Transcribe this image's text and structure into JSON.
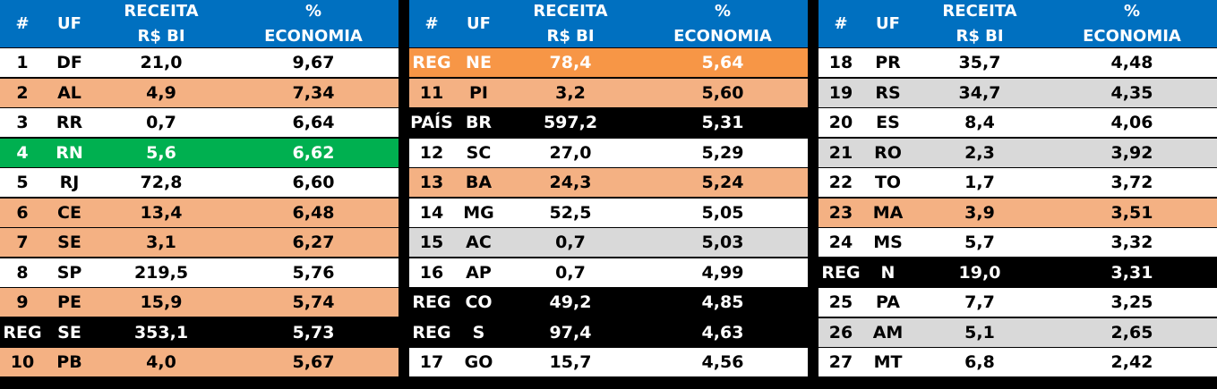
{
  "headers": {
    "rank": "#",
    "uf": "UF",
    "receita_line1": "RECEITA",
    "receita_line2": "R$ BI",
    "economia_line1": "%",
    "economia_line2": "ECONOMIA"
  },
  "colors": {
    "header": "#0070c0",
    "white": "#ffffff",
    "salmon": "#f4b183",
    "gray": "#d9d9d9",
    "orange": "#f79646",
    "green": "#00b050",
    "black": "#000000"
  },
  "tables": [
    {
      "rows": [
        {
          "rank": "1",
          "uf": "DF",
          "receita": "21,0",
          "economia": "9,67",
          "style": "white"
        },
        {
          "rank": "2",
          "uf": "AL",
          "receita": "4,9",
          "economia": "7,34",
          "style": "salmon"
        },
        {
          "rank": "3",
          "uf": "RR",
          "receita": "0,7",
          "economia": "6,64",
          "style": "white"
        },
        {
          "rank": "4",
          "uf": "RN",
          "receita": "5,6",
          "economia": "6,62",
          "style": "green"
        },
        {
          "rank": "5",
          "uf": "RJ",
          "receita": "72,8",
          "economia": "6,60",
          "style": "white"
        },
        {
          "rank": "6",
          "uf": "CE",
          "receita": "13,4",
          "economia": "6,48",
          "style": "salmon"
        },
        {
          "rank": "7",
          "uf": "SE",
          "receita": "3,1",
          "economia": "6,27",
          "style": "salmon"
        },
        {
          "rank": "8",
          "uf": "SP",
          "receita": "219,5",
          "economia": "5,76",
          "style": "white"
        },
        {
          "rank": "9",
          "uf": "PE",
          "receita": "15,9",
          "economia": "5,74",
          "style": "salmon"
        },
        {
          "rank": "REG",
          "uf": "SE",
          "receita": "353,1",
          "economia": "5,73",
          "style": "black"
        },
        {
          "rank": "10",
          "uf": "PB",
          "receita": "4,0",
          "economia": "5,67",
          "style": "salmon"
        }
      ]
    },
    {
      "rows": [
        {
          "rank": "REG",
          "uf": "NE",
          "receita": "78,4",
          "economia": "5,64",
          "style": "orange"
        },
        {
          "rank": "11",
          "uf": "PI",
          "receita": "3,2",
          "economia": "5,60",
          "style": "salmon"
        },
        {
          "rank": "PAÍS",
          "uf": "BR",
          "receita": "597,2",
          "economia": "5,31",
          "style": "black"
        },
        {
          "rank": "12",
          "uf": "SC",
          "receita": "27,0",
          "economia": "5,29",
          "style": "white"
        },
        {
          "rank": "13",
          "uf": "BA",
          "receita": "24,3",
          "economia": "5,24",
          "style": "salmon"
        },
        {
          "rank": "14",
          "uf": "MG",
          "receita": "52,5",
          "economia": "5,05",
          "style": "white"
        },
        {
          "rank": "15",
          "uf": "AC",
          "receita": "0,7",
          "economia": "5,03",
          "style": "gray"
        },
        {
          "rank": "16",
          "uf": "AP",
          "receita": "0,7",
          "economia": "4,99",
          "style": "white"
        },
        {
          "rank": "REG",
          "uf": "CO",
          "receita": "49,2",
          "economia": "4,85",
          "style": "black"
        },
        {
          "rank": "REG",
          "uf": "S",
          "receita": "97,4",
          "economia": "4,63",
          "style": "black"
        },
        {
          "rank": "17",
          "uf": "GO",
          "receita": "15,7",
          "economia": "4,56",
          "style": "white"
        }
      ]
    },
    {
      "rows": [
        {
          "rank": "18",
          "uf": "PR",
          "receita": "35,7",
          "economia": "4,48",
          "style": "white"
        },
        {
          "rank": "19",
          "uf": "RS",
          "receita": "34,7",
          "economia": "4,35",
          "style": "gray"
        },
        {
          "rank": "20",
          "uf": "ES",
          "receita": "8,4",
          "economia": "4,06",
          "style": "white"
        },
        {
          "rank": "21",
          "uf": "RO",
          "receita": "2,3",
          "economia": "3,92",
          "style": "gray"
        },
        {
          "rank": "22",
          "uf": "TO",
          "receita": "1,7",
          "economia": "3,72",
          "style": "white"
        },
        {
          "rank": "23",
          "uf": "MA",
          "receita": "3,9",
          "economia": "3,51",
          "style": "salmon"
        },
        {
          "rank": "24",
          "uf": "MS",
          "receita": "5,7",
          "economia": "3,32",
          "style": "white"
        },
        {
          "rank": "REG",
          "uf": "N",
          "receita": "19,0",
          "economia": "3,31",
          "style": "black"
        },
        {
          "rank": "25",
          "uf": "PA",
          "receita": "7,7",
          "economia": "3,25",
          "style": "white"
        },
        {
          "rank": "26",
          "uf": "AM",
          "receita": "5,1",
          "economia": "2,65",
          "style": "gray"
        },
        {
          "rank": "27",
          "uf": "MT",
          "receita": "6,8",
          "economia": "2,42",
          "style": "white"
        }
      ]
    }
  ]
}
